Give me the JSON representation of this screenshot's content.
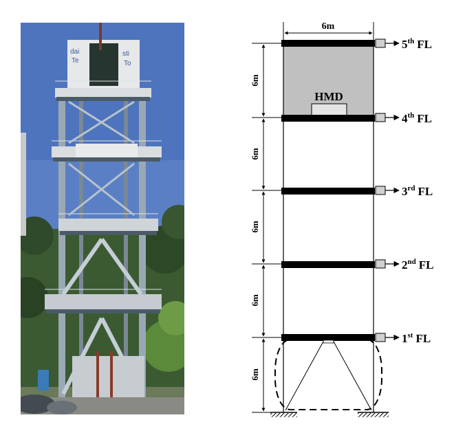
{
  "photo": {
    "sign_text": [
      "dai",
      "Te",
      "sti",
      "To"
    ]
  },
  "diagram": {
    "width_label": "6m",
    "height_labels": [
      "6m",
      "6m",
      "6m",
      "6m",
      "6m"
    ],
    "hmd_label": "HMD",
    "floors": [
      {
        "num": "5",
        "sup": "th",
        "suffix": "FL"
      },
      {
        "num": "4",
        "sup": "th",
        "suffix": "FL"
      },
      {
        "num": "3",
        "sup": "rd",
        "suffix": "FL"
      },
      {
        "num": "2",
        "sup": "nd",
        "suffix": "FL"
      },
      {
        "num": "1",
        "sup": "st",
        "suffix": "FL"
      }
    ]
  }
}
